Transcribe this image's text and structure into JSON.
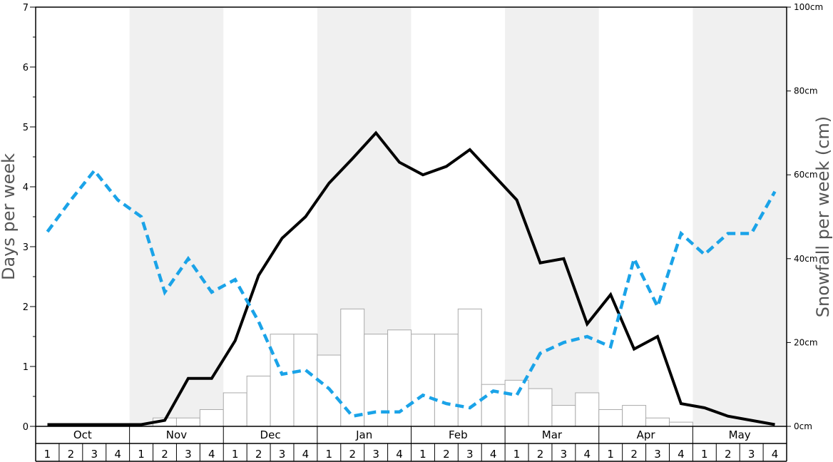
{
  "chart_data": {
    "type": "bar",
    "ylabel_left": "Days per week",
    "ylabel_right": "Snowfall per week (cm)",
    "ylim_left": [
      0,
      7
    ],
    "ylim_right": [
      0,
      100
    ],
    "left_ticks": [
      "0",
      "1",
      "2",
      "3",
      "4",
      "5",
      "6",
      "7"
    ],
    "right_ticks": [
      "0cm",
      "20cm",
      "40cm",
      "60cm",
      "80cm",
      "100cm"
    ],
    "months": [
      "Oct",
      "Nov",
      "Dec",
      "Jan",
      "Feb",
      "Mar",
      "Apr",
      "May"
    ],
    "weeks": [
      "1",
      "2",
      "3",
      "4"
    ],
    "grid": false,
    "colors": {
      "bars_fill": "#ffffff",
      "bars_stroke": "#aaaaaa",
      "black_line": "#000000",
      "blue_dashed_line": "#1aa3e8",
      "shaded_month": "#f0f0f0"
    },
    "series": [
      {
        "kind": "bar",
        "axis": "right",
        "values": [
          0,
          0,
          0,
          0,
          0,
          2,
          2,
          4,
          8,
          12,
          22,
          22,
          17,
          28,
          22,
          23,
          22,
          22,
          28,
          10,
          11,
          9,
          5,
          8,
          4,
          5,
          2,
          1,
          0,
          0,
          0,
          0
        ]
      },
      {
        "kind": "line",
        "style": "solid",
        "axis": "left",
        "values": [
          0.03,
          0.03,
          0.03,
          0.03,
          0.03,
          0.1,
          0.8,
          0.8,
          1.43,
          2.52,
          3.14,
          3.5,
          4.06,
          4.47,
          4.9,
          4.41,
          4.2,
          4.34,
          4.62,
          4.2,
          3.78,
          2.73,
          2.8,
          1.71,
          2.2,
          1.29,
          1.5,
          0.38,
          0.31,
          0.17,
          0.1,
          0.03
        ]
      },
      {
        "kind": "line",
        "style": "dashed",
        "axis": "left",
        "values": [
          3.25,
          3.78,
          4.27,
          3.78,
          3.5,
          2.24,
          2.8,
          2.24,
          2.45,
          1.75,
          0.87,
          0.94,
          0.63,
          0.17,
          0.24,
          0.24,
          0.52,
          0.38,
          0.31,
          0.59,
          0.52,
          1.22,
          1.4,
          1.5,
          1.33,
          2.8,
          2.0,
          3.22,
          2.87,
          3.22,
          3.22,
          3.92
        ]
      }
    ]
  }
}
